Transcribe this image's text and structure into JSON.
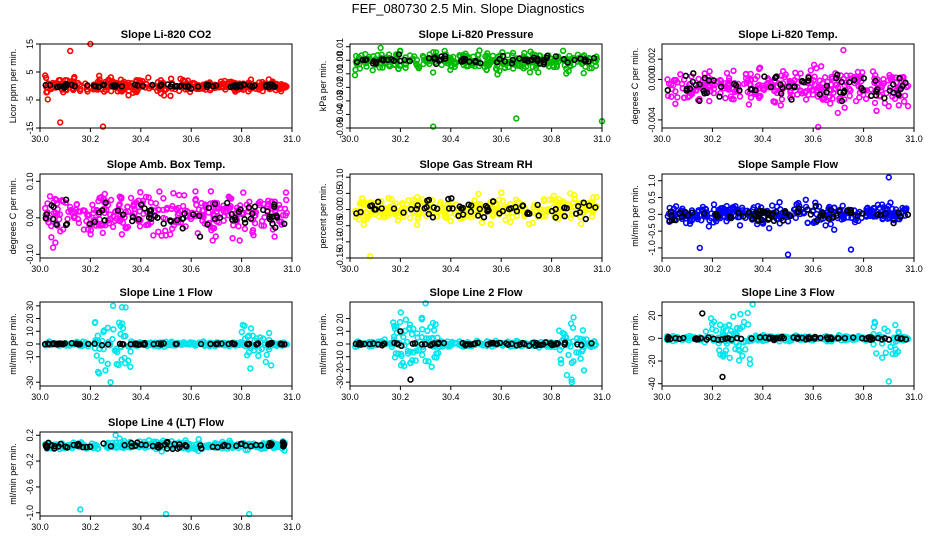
{
  "page": {
    "title": "FEF_080730  2.5 Min. Slope Diagnostics"
  },
  "chart_data": [
    {
      "type": "scatter",
      "title": "Slope Li-820 CO2",
      "ylabel": "Licor ppm per min.",
      "xlim": [
        30.0,
        31.0
      ],
      "ylim": [
        -15,
        15
      ],
      "xticks": [
        "30.0",
        "30.2",
        "30.4",
        "30.6",
        "30.8",
        "31.0"
      ],
      "yticks": [
        "-15",
        "-5",
        "5",
        "15"
      ],
      "series": [
        {
          "color": "#ff0000",
          "center": 0,
          "spread": 2.5,
          "tail_from": 30.6,
          "tail_spread": 0.6,
          "outliers": [
            [
              30.2,
              15.5
            ],
            [
              30.25,
              -14.5
            ],
            [
              30.08,
              -13.0
            ],
            [
              30.12,
              12.5
            ]
          ]
        },
        {
          "color": "#000000",
          "center": 0,
          "spread": 0.6
        }
      ]
    },
    {
      "type": "scatter",
      "title": "Slope Li-820 Pressure",
      "ylabel": "kPa per min.",
      "xlim": [
        30.0,
        31.0
      ],
      "ylim": [
        -0.05,
        0.012
      ],
      "xticks": [
        "30.0",
        "30.2",
        "30.4",
        "30.6",
        "30.8",
        "31.0"
      ],
      "yticks": [
        "-0.05",
        "-0.04",
        "-0.03",
        "-0.02",
        "-0.01",
        "0.00",
        "0.01"
      ],
      "series": [
        {
          "color": "#00bb00",
          "center": -0.001,
          "spread": 0.006,
          "outliers": [
            [
              30.33,
              -0.049
            ],
            [
              30.66,
              -0.043
            ],
            [
              31.0,
              -0.045
            ],
            [
              30.02,
              -0.011
            ]
          ]
        },
        {
          "color": "#000000",
          "center": 0.0,
          "spread": 0.0025
        }
      ]
    },
    {
      "type": "scatter",
      "title": "Slope Li-820 Temp.",
      "ylabel": "degrees C per min.",
      "xlim": [
        30.0,
        31.0
      ],
      "ylim": [
        -0.0048,
        0.0035
      ],
      "xticks": [
        "30.0",
        "30.2",
        "30.4",
        "30.6",
        "30.8",
        "31.0"
      ],
      "yticks": [
        "-0.004",
        "0.000",
        "0.002"
      ],
      "series": [
        {
          "color": "#ff00ff",
          "center": -0.0008,
          "spread": 0.0016,
          "outliers": [
            [
              30.72,
              0.0029
            ],
            [
              30.62,
              -0.0047
            ]
          ]
        },
        {
          "color": "#000000",
          "center": -0.0008,
          "spread": 0.0012
        }
      ]
    },
    {
      "type": "scatter",
      "title": "Slope Amb. Box Temp.",
      "ylabel": "degrees C per min.",
      "xlim": [
        30.0,
        31.0
      ],
      "ylim": [
        -0.11,
        0.12
      ],
      "xticks": [
        "30.0",
        "30.2",
        "30.4",
        "30.6",
        "30.8",
        "31.0"
      ],
      "yticks": [
        "-0.10",
        "0.00",
        "0.10"
      ],
      "series": [
        {
          "color": "#ff00ff",
          "center": 0.01,
          "spread": 0.05,
          "outliers": []
        },
        {
          "color": "#000000",
          "center": 0.005,
          "spread": 0.035
        }
      ]
    },
    {
      "type": "scatter",
      "title": "Slope Gas Stream RH",
      "ylabel": "percent per min.",
      "xlim": [
        30.0,
        31.0
      ],
      "ylim": [
        -0.15,
        0.11
      ],
      "xticks": [
        "30.0",
        "30.2",
        "30.4",
        "30.6",
        "30.8",
        "31.0"
      ],
      "yticks": [
        "-0.15",
        "-0.10",
        "-0.05",
        "0.00",
        "0.05",
        "0.10"
      ],
      "series": [
        {
          "color": "#ffff00",
          "center": 0.0,
          "spread": 0.035,
          "outliers": [
            [
              30.08,
              -0.145
            ]
          ]
        },
        {
          "color": "#000000",
          "center": 0.0,
          "spread": 0.03
        }
      ]
    },
    {
      "type": "scatter",
      "title": "Slope Sample Flow",
      "ylabel": "ml/min per min.",
      "xlim": [
        30.0,
        31.0
      ],
      "ylim": [
        -1.3,
        1.2
      ],
      "xticks": [
        "30.0",
        "30.2",
        "30.4",
        "30.6",
        "30.8",
        "31.0"
      ],
      "yticks": [
        "-1.0",
        "-0.5",
        "0.0",
        "0.5",
        "1.0"
      ],
      "series": [
        {
          "color": "#0000ff",
          "center": 0.0,
          "spread": 0.25,
          "outliers": [
            [
              30.15,
              -1.0
            ],
            [
              30.5,
              -1.2
            ],
            [
              30.75,
              -1.05
            ],
            [
              30.9,
              1.1
            ]
          ]
        },
        {
          "color": "#000000",
          "center": 0.0,
          "spread": 0.18
        }
      ]
    },
    {
      "type": "scatter",
      "title": "Slope Line 1 Flow",
      "ylabel": "ml/min per min.",
      "xlim": [
        30.0,
        31.0
      ],
      "ylim": [
        -33,
        33
      ],
      "xticks": [
        "30.0",
        "30.2",
        "30.4",
        "30.6",
        "30.8",
        "31.0"
      ],
      "yticks": [
        "-30",
        "-10",
        "0",
        "10",
        "20",
        "30"
      ],
      "series": [
        {
          "color": "#00e5ee",
          "center": 0,
          "spread": 1.5,
          "bursts": [
            [
              30.28,
              0.08,
              20
            ],
            [
              30.86,
              0.06,
              16
            ]
          ],
          "outliers": [
            [
              30.29,
              30
            ],
            [
              30.28,
              -30
            ]
          ]
        },
        {
          "color": "#000000",
          "center": 0,
          "spread": 0.6
        }
      ]
    },
    {
      "type": "scatter",
      "title": "Slope Line 2 Flow",
      "ylabel": "ml/min per min.",
      "xlim": [
        30.0,
        31.0
      ],
      "ylim": [
        -33,
        33
      ],
      "xticks": [
        "30.0",
        "30.2",
        "30.4",
        "30.6",
        "30.8",
        "31.0"
      ],
      "yticks": [
        "-30",
        "-20",
        "-10",
        "0",
        "10",
        "20"
      ],
      "series": [
        {
          "color": "#00e5ee",
          "center": 0,
          "spread": 2,
          "bursts": [
            [
              30.26,
              0.09,
              18
            ],
            [
              30.87,
              0.06,
              18
            ]
          ],
          "outliers": [
            [
              30.3,
              32
            ],
            [
              30.88,
              -30
            ]
          ]
        },
        {
          "color": "#000000",
          "center": 0,
          "spread": 1.2,
          "outliers": [
            [
              30.24,
              -28
            ],
            [
              30.2,
              10
            ]
          ]
        }
      ]
    },
    {
      "type": "scatter",
      "title": "Slope Line 3 Flow",
      "ylabel": "ml/min per min.",
      "xlim": [
        30.0,
        31.0
      ],
      "ylim": [
        -42,
        32
      ],
      "xticks": [
        "30.0",
        "30.2",
        "30.4",
        "30.6",
        "30.8",
        "31.0"
      ],
      "yticks": [
        "-40",
        "-20",
        "0",
        "20"
      ],
      "series": [
        {
          "color": "#00e5ee",
          "center": 0,
          "spread": 2,
          "bursts": [
            [
              30.26,
              0.09,
              18
            ],
            [
              30.88,
              0.06,
              18
            ]
          ],
          "outliers": [
            [
              30.36,
              30
            ],
            [
              30.9,
              -38
            ]
          ]
        },
        {
          "color": "#000000",
          "center": 0,
          "spread": 1.2,
          "outliers": [
            [
              30.24,
              -34
            ],
            [
              30.16,
              22
            ]
          ]
        }
      ]
    },
    {
      "type": "scatter",
      "title": "Slope Line 4 (LT) Flow",
      "ylabel": "ml/min per min.",
      "xlim": [
        30.0,
        31.0
      ],
      "ylim": [
        -1.05,
        0.25
      ],
      "xticks": [
        "30.0",
        "30.2",
        "30.4",
        "30.6",
        "30.8",
        "31.0"
      ],
      "yticks": [
        "-1.0",
        "-0.6",
        "-0.2",
        "0.2"
      ],
      "series": [
        {
          "color": "#00e5ee",
          "center": 0.04,
          "spread": 0.06,
          "outliers": [
            [
              30.16,
              -0.95
            ],
            [
              30.5,
              -1.02
            ],
            [
              30.83,
              -1.02
            ],
            [
              30.3,
              0.2
            ]
          ]
        },
        {
          "color": "#000000",
          "center": 0.04,
          "spread": 0.04
        }
      ]
    }
  ]
}
